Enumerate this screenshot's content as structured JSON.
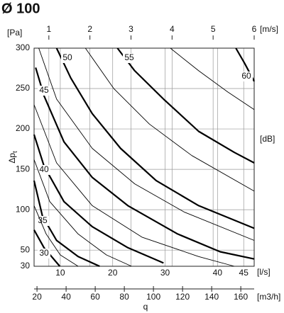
{
  "chart_data": {
    "type": "line",
    "title": "Ø 100",
    "y_label": "Δp",
    "y_label_sub": "t",
    "y_unit": "[Pa]",
    "x_unit": "[l/s]",
    "x_label": "q",
    "curve_unit": "[dB]",
    "xlim": [
      5,
      47
    ],
    "ylim": [
      30,
      300
    ],
    "xticks": [
      10,
      20,
      30,
      40,
      45
    ],
    "yticks": [
      30,
      50,
      100,
      150,
      200,
      250,
      300
    ],
    "grid": true,
    "color": "#000000",
    "top_axis": {
      "unit": "[m/s]",
      "lim": [
        0.64,
        6
      ],
      "ticks": [
        1,
        2,
        3,
        4,
        5,
        6
      ]
    },
    "bottom_axis2": {
      "unit": "[m3/h]",
      "lim": [
        18,
        169.2
      ],
      "ticks": [
        20,
        40,
        60,
        80,
        100,
        120,
        140,
        160
      ]
    },
    "series": [
      {
        "name": "30",
        "line_width": 2.2,
        "x": [
          5,
          6.9,
          9.9
        ],
        "values": [
          75,
          53,
          30
        ]
      },
      {
        "name": "35",
        "line_width": 2.2,
        "x": [
          5,
          6.6,
          9.3,
          13.4,
          17.5
        ],
        "values": [
          136,
          92,
          62,
          42,
          30
        ]
      },
      {
        "name": "40",
        "line_width": 2.2,
        "x": [
          5,
          6.9,
          10.7,
          16.1,
          22.9,
          29.7
        ],
        "values": [
          193,
          154,
          110,
          79,
          53,
          34
        ]
      },
      {
        "name": "45",
        "line_width": 2.2,
        "x": [
          5.3,
          6.9,
          10.7,
          16.1,
          22.9,
          32.4,
          40.5,
          47
        ],
        "values": [
          276,
          241,
          184,
          140,
          105,
          70,
          48,
          39
        ]
      },
      {
        "name": "50",
        "line_width": 2.2,
        "x": [
          9.3,
          12,
          16.1,
          21.5,
          28.3,
          36.4,
          47
        ],
        "values": [
          300,
          263,
          219,
          176,
          136,
          105,
          77
        ]
      },
      {
        "name": "55",
        "line_width": 2.2,
        "x": [
          20.9,
          24.2,
          29.7,
          36.4,
          43.2,
          47
        ],
        "values": [
          300,
          272,
          237,
          197,
          171,
          158
        ]
      },
      {
        "name": "60",
        "line_width": 2.2,
        "x": [
          43.5,
          45.2,
          47
        ],
        "values": [
          300,
          281,
          259
        ]
      },
      {
        "line_width": 0.9,
        "x": [
          5,
          7.3,
          10,
          13.4
        ],
        "values": [
          105,
          70,
          44,
          30
        ]
      },
      {
        "line_width": 0.9,
        "x": [
          5,
          8,
          13.4,
          18.8,
          23.6
        ],
        "values": [
          162,
          110,
          70,
          44,
          30
        ]
      },
      {
        "line_width": 0.9,
        "x": [
          5,
          9.3,
          16.1,
          25.6,
          36.4,
          43.2
        ],
        "values": [
          230,
          158,
          105,
          66,
          42,
          30
        ]
      },
      {
        "line_width": 0.9,
        "x": [
          5.9,
          9.3,
          16.1,
          24.2,
          33.7,
          47
        ],
        "values": [
          300,
          237,
          176,
          132,
          97,
          62
        ]
      },
      {
        "line_width": 0.9,
        "x": [
          14.8,
          20.2,
          27,
          35.1,
          47
        ],
        "values": [
          300,
          250,
          206,
          167,
          123
        ]
      },
      {
        "line_width": 0.9,
        "x": [
          31,
          36.4,
          41.9,
          47
        ],
        "values": [
          300,
          272,
          246,
          224
        ]
      }
    ]
  }
}
